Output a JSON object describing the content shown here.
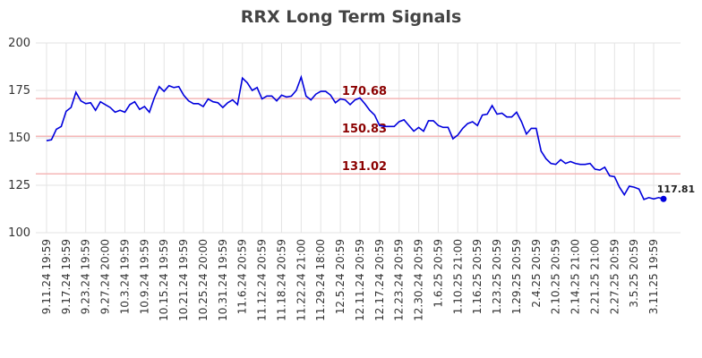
{
  "chart_data": {
    "type": "line",
    "title": "RRX Long Term Signals",
    "categories": [
      "9.11.24 19:59",
      null,
      null,
      null,
      "9.17.24 19:59",
      null,
      null,
      null,
      "9.23.24 19:59",
      null,
      null,
      null,
      "9.27.24 20:00",
      null,
      null,
      null,
      "10.3.24 19:59",
      null,
      null,
      null,
      "10.9.24 19:59",
      null,
      null,
      null,
      "10.15.24 19:59",
      null,
      null,
      null,
      "10.21.24 19:59",
      null,
      null,
      null,
      "10.25.24 20:00",
      null,
      null,
      null,
      "10.31.24 19:59",
      null,
      null,
      null,
      "11.6.24 20:59",
      null,
      null,
      null,
      "11.12.24 20:59",
      null,
      null,
      null,
      "11.18.24 20:59",
      null,
      null,
      null,
      "11.22.24 21:00",
      null,
      null,
      null,
      "11.29.24 18:00",
      null,
      null,
      null,
      "12.5.24 20:59",
      null,
      null,
      null,
      "12.11.24 20:59",
      null,
      null,
      null,
      "12.17.24 20:59",
      null,
      null,
      null,
      "12.23.24 20:59",
      null,
      null,
      null,
      "12.30.24 20:59",
      null,
      null,
      null,
      "1.6.25 20:59",
      null,
      null,
      null,
      "1.10.25 21:00",
      null,
      null,
      null,
      "1.16.25 20:59",
      null,
      null,
      null,
      "1.23.25 20:59",
      null,
      null,
      null,
      "1.29.25 20:59",
      null,
      null,
      null,
      "2.4.25 20:59",
      null,
      null,
      null,
      "2.10.25 20:59",
      null,
      null,
      null,
      "2.14.25 21:00",
      null,
      null,
      null,
      "2.21.25 21:00",
      null,
      null,
      null,
      "2.27.25 20:59",
      null,
      null,
      null,
      "3.5.25 20:59",
      null,
      null,
      null,
      "3.11.25 19:59",
      null,
      null
    ],
    "values": [
      148.5,
      149,
      154.5,
      156,
      164,
      166,
      174,
      169.5,
      168,
      168.5,
      164.5,
      169,
      167.5,
      166,
      163.5,
      164.5,
      163.5,
      167.5,
      169,
      165,
      166.5,
      163.5,
      171,
      177,
      174.5,
      177.5,
      176.5,
      177,
      172.5,
      169.5,
      168,
      168,
      166.5,
      170.5,
      169,
      168.5,
      166,
      168.5,
      170,
      167.5,
      181.5,
      179,
      175,
      176.5,
      170.5,
      172,
      172,
      169.5,
      172.5,
      171.5,
      172,
      175,
      182,
      172,
      170,
      173,
      174.5,
      174.5,
      172.5,
      168.5,
      170.5,
      170,
      167.5,
      170,
      171,
      168,
      164.5,
      162,
      156.5,
      156,
      156,
      156,
      158.5,
      159.5,
      156.5,
      153.5,
      155.5,
      153.5,
      159,
      159,
      156.5,
      155.5,
      155.5,
      149.5,
      151.5,
      155,
      157.5,
      158.5,
      156.5,
      162,
      162.5,
      167,
      162.5,
      163,
      161,
      161,
      163.5,
      158.5,
      152,
      155,
      155,
      143,
      139,
      136.5,
      136,
      138.5,
      136.5,
      137.5,
      136.5,
      136,
      136,
      136.5,
      133.5,
      133,
      134.5,
      130,
      129.5,
      124,
      120,
      124.5,
      124,
      123,
      117.5,
      118.5,
      117.81,
      118.5,
      117.81
    ],
    "color": "#0000dd",
    "levels": [
      170.68,
      150.83,
      131.02
    ],
    "level_color": "#f5b7b7",
    "level_label_color": "#8b0000",
    "ylim": [
      100,
      200
    ],
    "yticks": [
      100,
      125,
      150,
      175,
      200
    ],
    "grid": true
  }
}
